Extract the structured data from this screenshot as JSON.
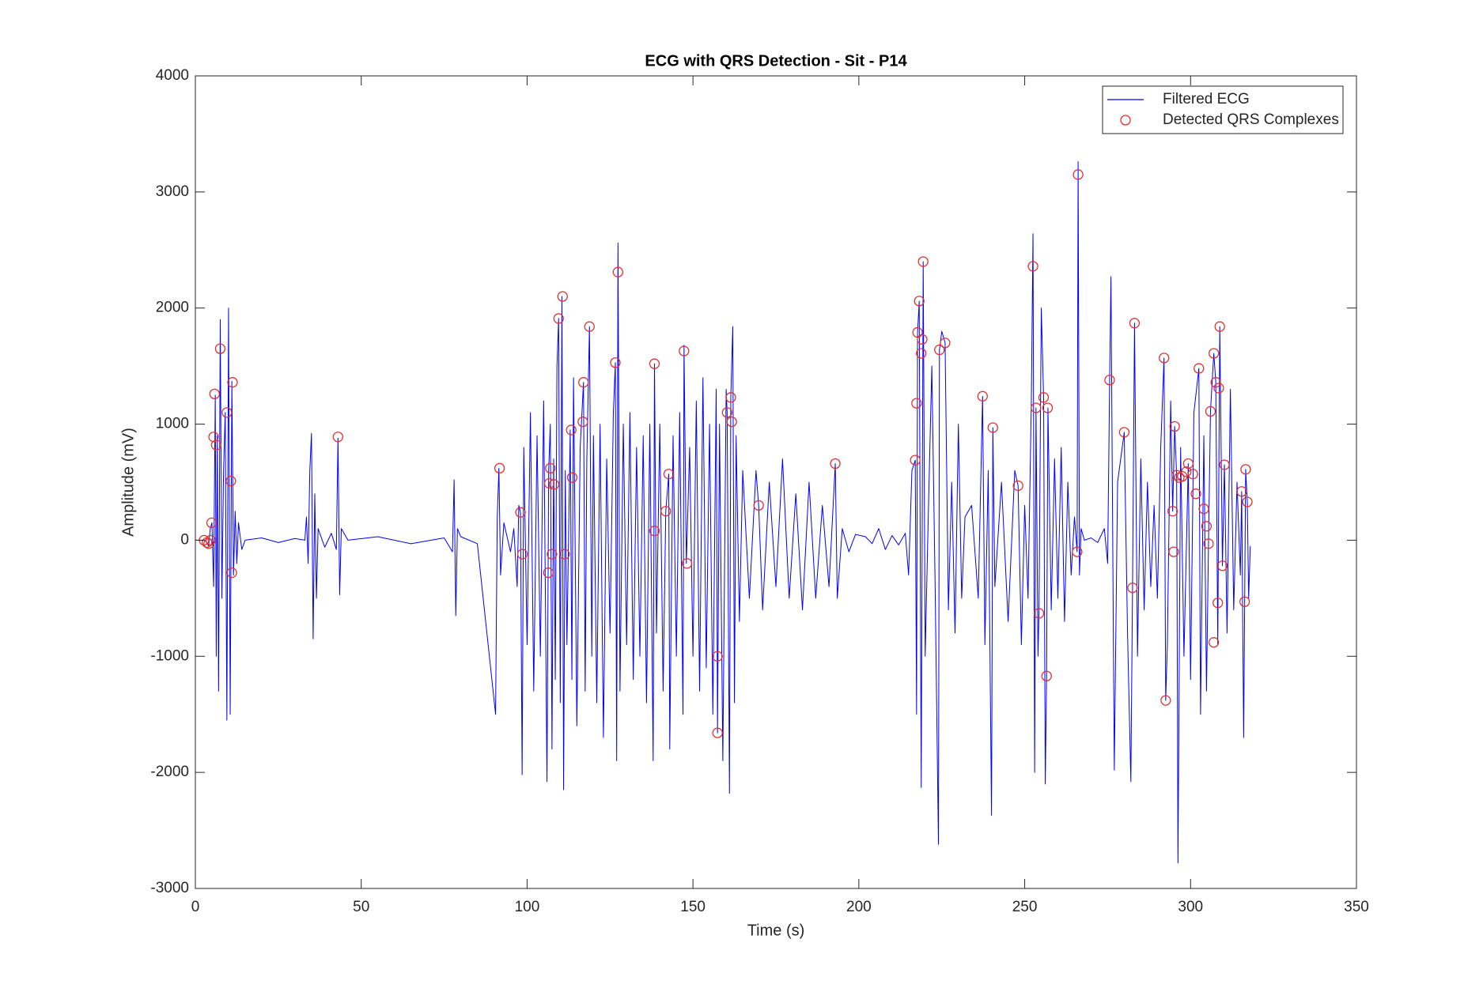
{
  "chart_data": {
    "type": "line",
    "title": "ECG with QRS Detection - Sit - P14",
    "xlabel": "Time (s)",
    "ylabel": "Amplitude (mV)",
    "xlim": [
      0,
      350
    ],
    "ylim": [
      -3000,
      4000
    ],
    "xticks": [
      0,
      50,
      100,
      150,
      200,
      250,
      300,
      350
    ],
    "yticks": [
      -3000,
      -2000,
      -1000,
      0,
      1000,
      2000,
      3000,
      4000
    ],
    "grid": false,
    "legend": "northeast",
    "series": [
      {
        "name": "Filtered ECG",
        "color": "#0000ff",
        "style": "line",
        "x": [
          0,
          3,
          4,
          4.5,
          5,
          5.5,
          6,
          6.3,
          6.6,
          7,
          7.5,
          8,
          8.5,
          9,
          9.5,
          10,
          10.5,
          11,
          11.5,
          12,
          12.5,
          13,
          14,
          15,
          20,
          25,
          30,
          33,
          33.5,
          34,
          34.5,
          35,
          35.5,
          36,
          36.5,
          37,
          39,
          41,
          42.5,
          43,
          43.5,
          44,
          46,
          55,
          65,
          75,
          77.5,
          78,
          78.5,
          79,
          80,
          85,
          90.5,
          91,
          91.5,
          92,
          93,
          95,
          96,
          97,
          97.5,
          98,
          98.5,
          99,
          100,
          101,
          102,
          103,
          104,
          105,
          106,
          106.5,
          107,
          107.5,
          108,
          108.5,
          109,
          109.5,
          110,
          110.5,
          111,
          111.5,
          112,
          113,
          113.5,
          114,
          115,
          116,
          117,
          117.5,
          118,
          118.8,
          119.5,
          120,
          121,
          122,
          123,
          124,
          125,
          126,
          126.6,
          127,
          127.4,
          128,
          129,
          130,
          131,
          132,
          133,
          134,
          135,
          136,
          137,
          138,
          138.4,
          139,
          140,
          141,
          141.8,
          142.7,
          143,
          144,
          145,
          146,
          147,
          147.3,
          148,
          149,
          150,
          151,
          152,
          153,
          154,
          155,
          156,
          157,
          157.4,
          158,
          159,
          160,
          160.3,
          161,
          161.4,
          162,
          162.5,
          163,
          164,
          165,
          167,
          169,
          169.8,
          171,
          173,
          175,
          177,
          179,
          181,
          183,
          185,
          187,
          189,
          191,
          192.9,
          193.5,
          195,
          197,
          199,
          202,
          204,
          206,
          208,
          210,
          212,
          214,
          215,
          216,
          217,
          217.4,
          217.7,
          218.2,
          218.8,
          219.4,
          220,
          221,
          222,
          223,
          224,
          224.3,
          225,
          226,
          227,
          228,
          229,
          230,
          231,
          232,
          234,
          236,
          237.3,
          238,
          239,
          240,
          240.4,
          241,
          243,
          245,
          247,
          248,
          249,
          250,
          251,
          252,
          252.5,
          253,
          253.4,
          254,
          254.3,
          255,
          255.7,
          256.2,
          256.6,
          257,
          258,
          259,
          260,
          261,
          262,
          263,
          264,
          265,
          265.8,
          266.1,
          266.5,
          267,
          268,
          270,
          272,
          274,
          275,
          275.6,
          276,
          277,
          278,
          280,
          281,
          282,
          282.5,
          283.1,
          284,
          285,
          286,
          287,
          288,
          289,
          290,
          291,
          292,
          292.5,
          293,
          294,
          294.6,
          295.2,
          295.8,
          296.2,
          297,
          298,
          299.3,
          300,
          301,
          302.5,
          303,
          304,
          304.8,
          305.4,
          306,
          307,
          307.6,
          308.2,
          308.8,
          309.6,
          310.2,
          311,
          312,
          313,
          314,
          315,
          315.4,
          316,
          316.6,
          317.1,
          317.5,
          318
        ],
        "values": [
          0,
          0,
          -50,
          100,
          150,
          -400,
          1250,
          -1000,
          900,
          -1300,
          1900,
          -500,
          600,
          1100,
          -1550,
          2000,
          -1500,
          1370,
          -300,
          250,
          -200,
          150,
          -80,
          0,
          20,
          -20,
          15,
          0,
          200,
          -200,
          600,
          920,
          -850,
          400,
          -500,
          100,
          -60,
          60,
          -80,
          880,
          -470,
          100,
          0,
          30,
          -30,
          20,
          -100,
          520,
          -650,
          100,
          30,
          -30,
          -1500,
          200,
          620,
          -300,
          150,
          -100,
          100,
          -400,
          300,
          240,
          -2020,
          800,
          -900,
          1100,
          -1300,
          900,
          -1000,
          1200,
          -2080,
          600,
          1000,
          -1800,
          700,
          -1200,
          1500,
          1910,
          -1400,
          2100,
          -2150,
          600,
          -900,
          950,
          -1200,
          1400,
          -1600,
          800,
          1360,
          -1300,
          700,
          1840,
          -1000,
          900,
          -1400,
          1000,
          -1700,
          700,
          -800,
          1100,
          1530,
          -1900,
          2560,
          -1300,
          1000,
          -900,
          1100,
          -1200,
          800,
          -1000,
          900,
          -1400,
          1000,
          -1900,
          1520,
          -800,
          1000,
          -1300,
          250,
          570,
          -1800,
          900,
          -1000,
          1100,
          -1500,
          1680,
          -200,
          800,
          -1000,
          1200,
          -1300,
          1400,
          -1100,
          1000,
          -1500,
          1300,
          -1660,
          1000,
          -1900,
          1300,
          1100,
          -2180,
          1230,
          1840,
          -1400,
          900,
          -700,
          600,
          -500,
          600,
          300,
          -600,
          500,
          -400,
          700,
          -500,
          400,
          -600,
          500,
          -500,
          300,
          -400,
          660,
          -500,
          100,
          -100,
          50,
          30,
          -30,
          100,
          -80,
          40,
          -40,
          60,
          -300,
          600,
          690,
          -1500,
          1790,
          2060,
          -2130,
          2400,
          -1000,
          300,
          1500,
          -400,
          -2620,
          1640,
          1800,
          1700,
          -600,
          500,
          -800,
          1000,
          -500,
          200,
          300,
          -500,
          1240,
          -900,
          600,
          -2370,
          970,
          -400,
          500,
          -700,
          600,
          470,
          -900,
          300,
          -500,
          1200,
          2640,
          -2000,
          1140,
          -1000,
          -630,
          2000,
          1230,
          -2100,
          -1170,
          1140,
          -600,
          700,
          -500,
          800,
          -700,
          500,
          -300,
          200,
          -100,
          3260,
          -300,
          100,
          0,
          20,
          -20,
          100,
          -200,
          1380,
          2270,
          -1980,
          500,
          930,
          -800,
          -2080,
          -410,
          1870,
          -1000,
          700,
          -600,
          500,
          -400,
          300,
          -500,
          800,
          1570,
          -1380,
          -900,
          1200,
          250,
          980,
          560,
          -2780,
          800,
          -1000,
          660,
          -1200,
          1100,
          1480,
          -1500,
          900,
          -1300,
          -30,
          1110,
          1610,
          1360,
          -900,
          1840,
          -220,
          650,
          -800,
          1300,
          -600,
          500,
          -300,
          420,
          -1700,
          610,
          330,
          -500,
          -50
        ]
      },
      {
        "name": "Detected QRS Complexes",
        "color": "#e03030",
        "style": "markers",
        "x": [
          2.6,
          3.5,
          4,
          4.6,
          4.9,
          5.5,
          5.8,
          6.3,
          7.5,
          9.5,
          10.7,
          11,
          11.2,
          43,
          91.7,
          98,
          98.6,
          106.4,
          106.7,
          107,
          107.5,
          108.1,
          109.5,
          110.7,
          111.3,
          113.3,
          113.6,
          116.8,
          117,
          118.8,
          126.6,
          127.4,
          138.4,
          138.4,
          141.8,
          142.7,
          147.3,
          148.2,
          157.4,
          157.4,
          160.3,
          161.4,
          161.7,
          169.8,
          192.9,
          217,
          217.4,
          217.7,
          218.2,
          218.8,
          219.1,
          219.4,
          224.3,
          226,
          237.3,
          240.4,
          248,
          252.5,
          253.4,
          254.3,
          255.7,
          256.6,
          256.9,
          265.8,
          266.1,
          275.6,
          280,
          282.5,
          283.1,
          292,
          292.5,
          294.6,
          294.9,
          295.2,
          295.8,
          296.6,
          297.5,
          298.7,
          299.3,
          300.7,
          301.6,
          302.5,
          304,
          304.8,
          305.4,
          306,
          307,
          307,
          307.6,
          308.2,
          308.5,
          308.8,
          309.6,
          310.2,
          315.4,
          316.3,
          316.6,
          317.1
        ],
        "values": [
          0,
          -20,
          -30,
          0,
          150,
          890,
          1260,
          820,
          1650,
          1100,
          510,
          -280,
          1360,
          890,
          620,
          240,
          -120,
          -280,
          490,
          620,
          -120,
          480,
          1910,
          2100,
          -120,
          950,
          540,
          1020,
          1360,
          1840,
          1530,
          2310,
          1520,
          80,
          250,
          570,
          1630,
          -200,
          -1000,
          -1660,
          1100,
          1230,
          1020,
          300,
          660,
          690,
          1180,
          1790,
          2060,
          1610,
          1730,
          2400,
          1640,
          1700,
          1240,
          970,
          470,
          2360,
          1140,
          -630,
          1230,
          -1170,
          1140,
          -100,
          3150,
          1380,
          930,
          -410,
          1870,
          1570,
          -1380,
          250,
          -100,
          980,
          560,
          540,
          550,
          590,
          660,
          570,
          400,
          1480,
          270,
          120,
          -30,
          1110,
          1610,
          -880,
          1360,
          -540,
          1310,
          1840,
          -220,
          650,
          420,
          -530,
          610,
          330
        ]
      }
    ]
  }
}
